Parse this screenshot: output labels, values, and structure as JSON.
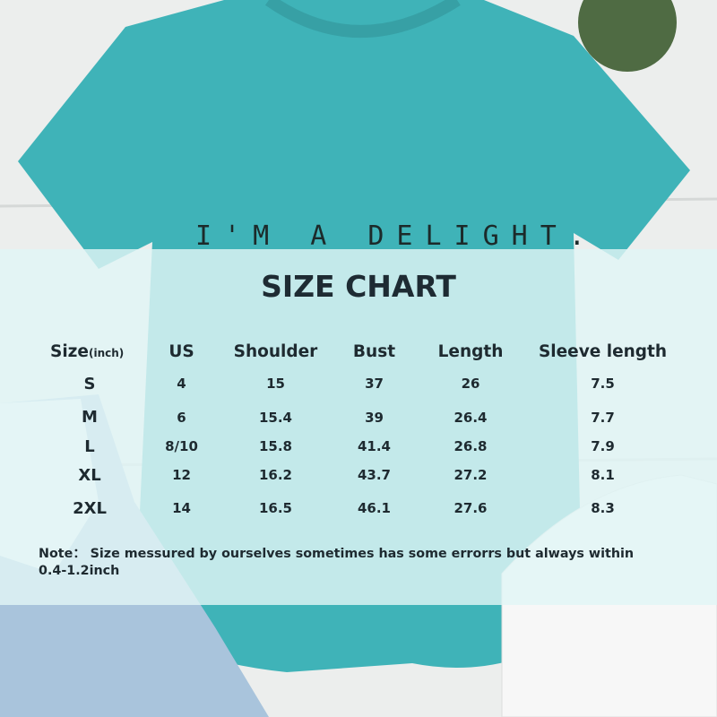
{
  "shirt_print": "I'M A DELIGHT.",
  "title": "SIZE CHART",
  "columns": [
    {
      "label": "Size",
      "unit": "(inch)"
    },
    {
      "label": "US"
    },
    {
      "label": "Shoulder"
    },
    {
      "label": "Bust"
    },
    {
      "label": "Length"
    },
    {
      "label": "Sleeve length"
    }
  ],
  "rows": [
    [
      "S",
      "4",
      "15",
      "37",
      "26",
      "7.5"
    ],
    [
      "M",
      "6",
      "15.4",
      "39",
      "26.4",
      "7.7"
    ],
    [
      "L",
      "8/10",
      "15.8",
      "41.4",
      "26.8",
      "7.9"
    ],
    [
      "XL",
      "12",
      "16.2",
      "43.7",
      "27.2",
      "8.1"
    ],
    [
      "2XL",
      "14",
      "16.5",
      "46.1",
      "27.6",
      "8.3"
    ]
  ],
  "note": "Note： Size messured by ourselves sometimes has some errorrs but always within 0.4-1.2inch",
  "colors": {
    "shirt": "#3fb3b8",
    "text": "#1e2a30"
  }
}
